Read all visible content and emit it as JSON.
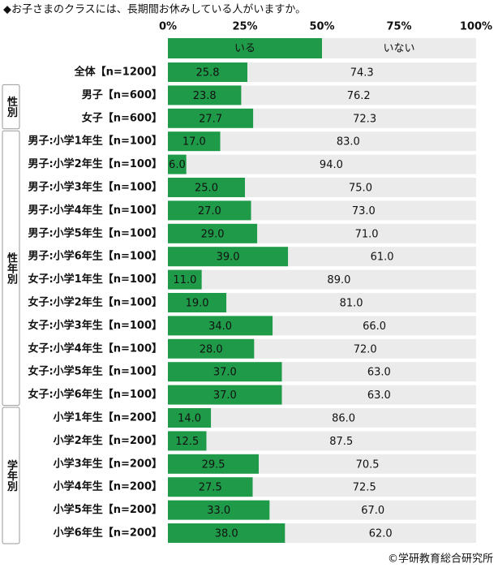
{
  "chart_data": {
    "type": "stacked-bar-100",
    "title": "◆お子さまのクラスには、長期間お休みしている人がいますか。",
    "groups": [
      {
        "label": null,
        "categories": [
          "全体【n=1200】"
        ]
      },
      {
        "label": "性別",
        "categories": [
          "男子【n=600】",
          "女子【n=600】"
        ]
      },
      {
        "label": "性年別",
        "categories": [
          "男子:小学1年生【n=100】",
          "男子:小学2年生【n=100】",
          "男子:小学3年生【n=100】",
          "男子:小学4年生【n=100】",
          "男子:小学5年生【n=100】",
          "男子:小学6年生【n=100】",
          "女子:小学1年生【n=100】",
          "女子:小学2年生【n=100】",
          "女子:小学3年生【n=100】",
          "女子:小学4年生【n=100】",
          "女子:小学5年生【n=100】",
          "女子:小学6年生【n=100】"
        ]
      },
      {
        "label": "学年別",
        "categories": [
          "小学1年生【n=200】",
          "小学2年生【n=200】",
          "小学3年生【n=200】",
          "小学4年生【n=200】",
          "小学5年生【n=200】",
          "小学6年生【n=200】"
        ]
      }
    ],
    "series": [
      {
        "name": "いる",
        "color": "#1f9a48",
        "values": [
          25.8,
          23.8,
          27.7,
          17,
          6,
          25,
          27,
          29,
          39,
          11,
          19,
          34,
          28,
          37,
          37,
          14,
          12.5,
          29.5,
          27.5,
          33,
          38
        ],
        "value_labels": [
          "25.8",
          "23.8",
          "27.7",
          "17.0",
          "6.0",
          "25.0",
          "27.0",
          "29.0",
          "39.0",
          "11.0",
          "19.0",
          "34.0",
          "28.0",
          "37.0",
          "37.0",
          "14.0",
          "12.5",
          "29.5",
          "27.5",
          "33.0",
          "38.0"
        ]
      },
      {
        "name": "いない",
        "color": "#ebebeb",
        "values": [
          74.3,
          76.2,
          72.3,
          83,
          94,
          75,
          73,
          71,
          61,
          89,
          81,
          66,
          72,
          63,
          63,
          86,
          87.5,
          70.5,
          72.5,
          67,
          62
        ],
        "value_labels": [
          "74.3",
          "76.2",
          "72.3",
          "83.0",
          "94.0",
          "75.0",
          "73.0",
          "71.0",
          "61.0",
          "89.0",
          "81.0",
          "66.0",
          "72.0",
          "63.0",
          "63.0",
          "86.0",
          "87.5",
          "70.5",
          "72.5",
          "67.0",
          "62.0"
        ]
      }
    ],
    "xlim": [
      0,
      100
    ],
    "xticks": [
      {
        "value": 0,
        "label": "0%"
      },
      {
        "value": 25,
        "label": "25%"
      },
      {
        "value": 50,
        "label": "50%"
      },
      {
        "value": 75,
        "label": "75%"
      },
      {
        "value": 100,
        "label": "100%"
      }
    ],
    "footer": "©学研教育総合研究所"
  }
}
